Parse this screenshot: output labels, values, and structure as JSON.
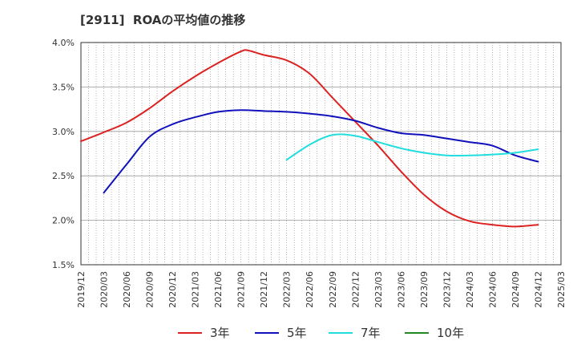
{
  "page": {
    "title": "[2911]  ROAの平均値の推移"
  },
  "chart_data": {
    "type": "line",
    "title": "[2911]  ROAの平均値の推移",
    "xlabel": "",
    "ylabel": "",
    "ylim": [
      1.5,
      4.0
    ],
    "y_ticks": [
      "1.5%",
      "2.0%",
      "2.5%",
      "3.0%",
      "3.5%",
      "4.0%"
    ],
    "y_tick_values": [
      1.5,
      2.0,
      2.5,
      3.0,
      3.5,
      4.0
    ],
    "x_ticks": [
      "2019/12",
      "2020/03",
      "2020/06",
      "2020/09",
      "2020/12",
      "2021/03",
      "2021/06",
      "2021/09",
      "2021/12",
      "2022/03",
      "2022/06",
      "2022/09",
      "2022/12",
      "2023/03",
      "2023/06",
      "2023/09",
      "2023/12",
      "2024/03",
      "2024/06",
      "2024/09",
      "2024/12",
      "2025/03"
    ],
    "grid": true,
    "legend_position": "bottom",
    "series": [
      {
        "name": "3年",
        "color": "#dd2222",
        "x": [
          "2019/12",
          "2020/03",
          "2020/06",
          "2020/09",
          "2020/12",
          "2021/03",
          "2021/06",
          "2021/09",
          "2021/10",
          "2021/12",
          "2022/03",
          "2022/06",
          "2022/09",
          "2022/12",
          "2023/03",
          "2023/06",
          "2023/09",
          "2023/12",
          "2024/03",
          "2024/06",
          "2024/09",
          "2024/12"
        ],
        "values": [
          2.89,
          2.99,
          3.1,
          3.26,
          3.45,
          3.62,
          3.77,
          3.9,
          3.91,
          3.86,
          3.8,
          3.65,
          3.38,
          3.11,
          2.84,
          2.55,
          2.29,
          2.1,
          1.99,
          1.95,
          1.93,
          1.95
        ]
      },
      {
        "name": "5年",
        "color": "#1111bb",
        "x": [
          "2020/03",
          "2020/06",
          "2020/09",
          "2020/12",
          "2021/03",
          "2021/06",
          "2021/09",
          "2021/12",
          "2022/03",
          "2022/06",
          "2022/09",
          "2022/12",
          "2023/03",
          "2023/06",
          "2023/09",
          "2023/12",
          "2024/03",
          "2024/06",
          "2024/09",
          "2024/12"
        ],
        "values": [
          2.31,
          2.63,
          2.94,
          3.08,
          3.16,
          3.22,
          3.24,
          3.23,
          3.22,
          3.2,
          3.17,
          3.12,
          3.04,
          2.98,
          2.96,
          2.92,
          2.88,
          2.84,
          2.73,
          2.66
        ]
      },
      {
        "name": "7年",
        "color": "#22dddd",
        "x": [
          "2022/03",
          "2022/06",
          "2022/09",
          "2022/12",
          "2023/03",
          "2023/06",
          "2023/09",
          "2023/12",
          "2024/03",
          "2024/06",
          "2024/09",
          "2024/12"
        ],
        "values": [
          2.68,
          2.85,
          2.96,
          2.95,
          2.88,
          2.81,
          2.76,
          2.73,
          2.73,
          2.74,
          2.76,
          2.8
        ]
      },
      {
        "name": "10年",
        "color": "#228822",
        "x": [],
        "values": []
      }
    ]
  }
}
